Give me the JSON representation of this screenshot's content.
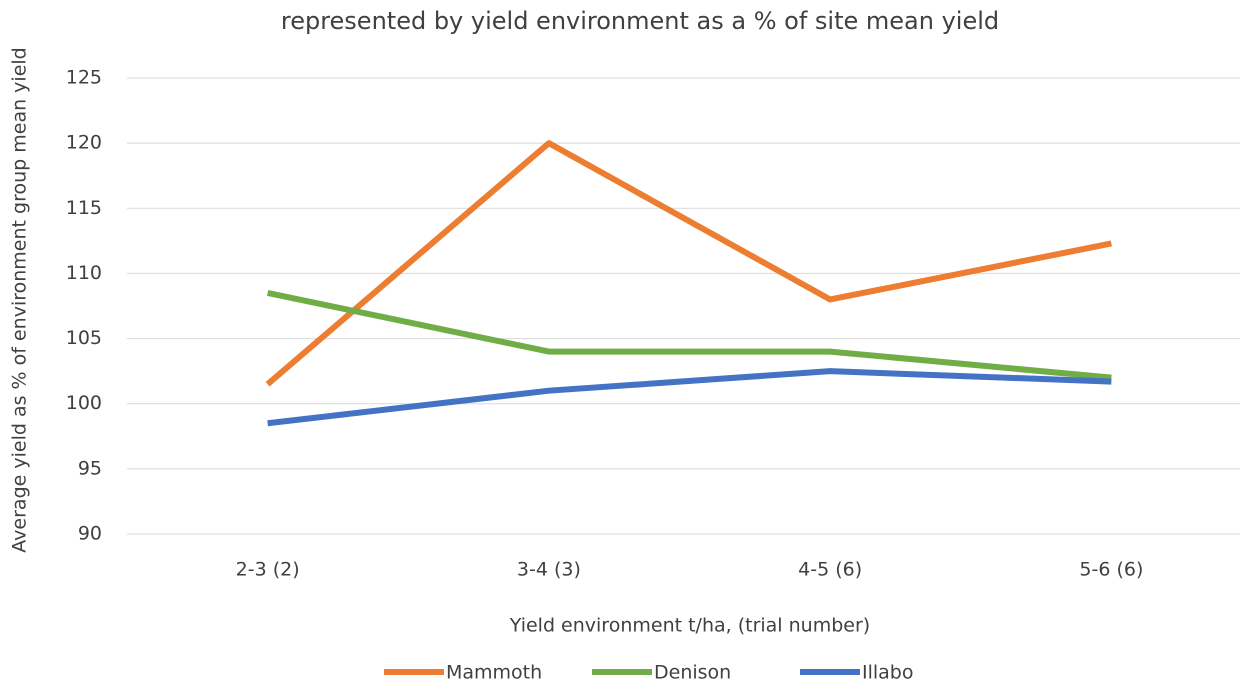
{
  "chart_data": {
    "type": "line",
    "title": "represented by yield environment as a % of site mean yield",
    "x_label": "Yield environment t/ha, (trial number)",
    "y_label": "Average yield as % of environment group mean yield",
    "categories": [
      "2-3 (2)",
      "3-4 (3)",
      "4-5 (6)",
      "5-6 (6)"
    ],
    "series": [
      {
        "name": "Mammoth",
        "color": "#ed7d31",
        "values": [
          101.5,
          120,
          108,
          112.3
        ]
      },
      {
        "name": "Denison",
        "color": "#70ad47",
        "values": [
          108.5,
          104,
          104,
          102
        ]
      },
      {
        "name": "Illabo",
        "color": "#4472c4",
        "values": [
          98.5,
          101,
          102.5,
          101.7
        ]
      }
    ],
    "ylim": [
      90,
      125
    ],
    "yticks": [
      90,
      95,
      100,
      105,
      110,
      115,
      120,
      125
    ],
    "grid": true,
    "legend": "bottom"
  }
}
